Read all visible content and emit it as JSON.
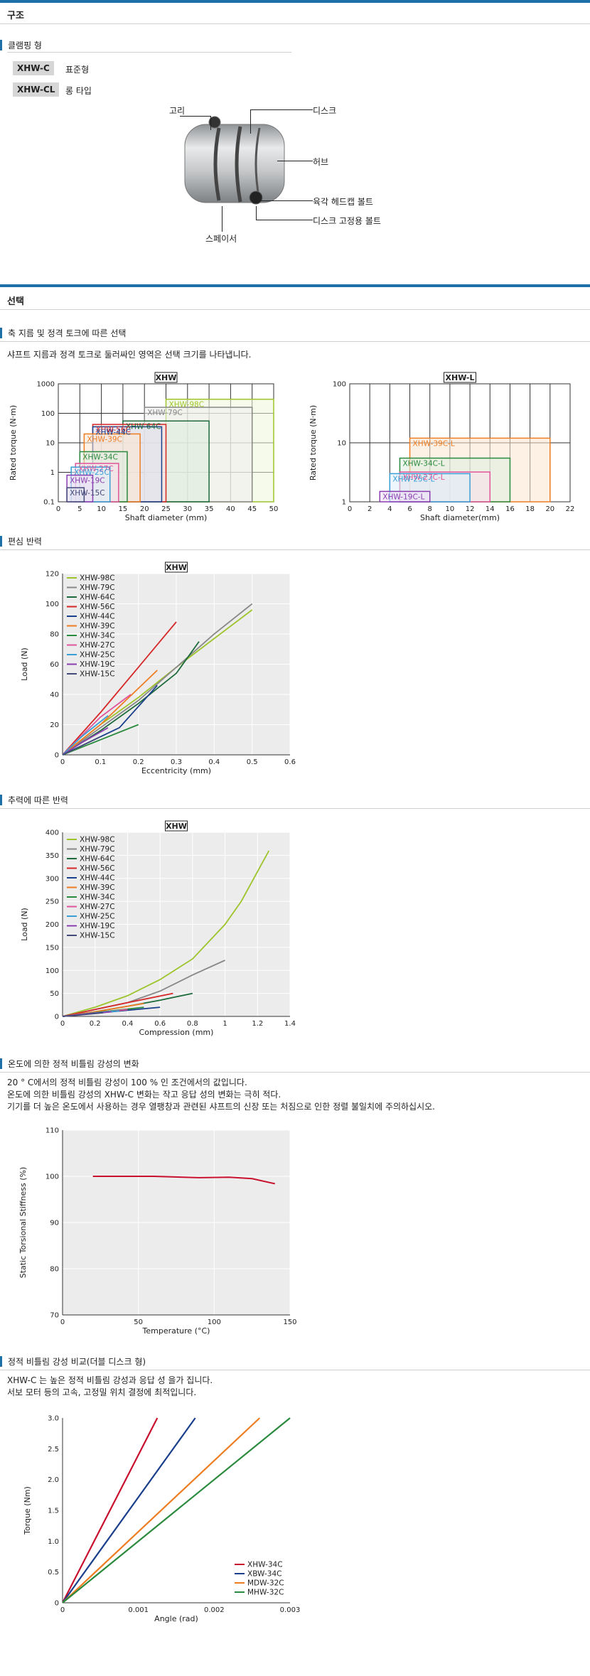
{
  "structure": {
    "title": "구조",
    "clamp_title": "클램핑 형",
    "types": [
      {
        "code": "XHW-C",
        "desc": "표준형"
      },
      {
        "code": "XHW-CL",
        "desc": "롱 타입"
      }
    ],
    "callouts": {
      "ring": "고리",
      "disc": "디스크",
      "hub": "허브",
      "hex_bolt": "육각 헤드캡 볼트",
      "disc_bolt": "디스크 고정용 볼트",
      "spacer": "스페이서"
    }
  },
  "selection": {
    "title": "선택",
    "sub1": "축 지름 및 정격 토크에 따른 선택",
    "desc1": "샤프트 지름과 정격 토크로 둘러싸인 영역은 선택 크기를 나타냅니다.",
    "sub2": "편심 반력",
    "sub3": "추력에 따른 반력",
    "sub4": "온도에 의한 정적 비틀림 강성의 변화",
    "temp_lines": [
      "20 ° C에서의 정적 비틀림 강성이 100 % 인 조건에서의 값입니다.",
      "온도에 의한 비틀림 강성의 XHW-C 변화는 작고 응답 성의 변화는 극히 적다.",
      "기기를 더 높은 온도에서 사용하는 경우 열팽창과 관련된 샤프트의 신장 또는 처짐으로 인한 정렬 불일치에 주의하십시오."
    ],
    "sub5": "정적 비틀림 강성 비교(더블 디스크 형)",
    "cmp_lines": [
      "XHW-C 는 높은 정적 비틀림 강성과 응답 성 을가 집니다.",
      "서보 모터 등의 고속, 고정밀 위치 결정에 최적입니다."
    ]
  },
  "chart_data": [
    {
      "type": "area",
      "title": "XHW",
      "xlabel": "Shaft diameter (mm)",
      "ylabel": "Rated torque (N·m)",
      "xlim": [
        0,
        50
      ],
      "ylim": [
        0.1,
        1000
      ],
      "y_scale": "log",
      "xticks": [
        0,
        5,
        10,
        15,
        20,
        25,
        30,
        35,
        40,
        45,
        50
      ],
      "yticks": [
        0.1,
        1,
        10,
        100,
        1000
      ],
      "ytick_labels": [
        "0.1",
        "1",
        "10",
        "100",
        "1000"
      ],
      "regions": [
        {
          "name": "XHW-98C",
          "x": [
            25,
            50
          ],
          "y": [
            0.1,
            300
          ],
          "color": "#9dc42b",
          "fill": "#eef5d8"
        },
        {
          "name": "XHW-79C",
          "x": [
            20,
            45
          ],
          "y": [
            0.1,
            160
          ],
          "color": "#888888",
          "fill": "#ececec"
        },
        {
          "name": "XHW-64C",
          "x": [
            15,
            35
          ],
          "y": [
            0.1,
            55
          ],
          "color": "#1d6b3c",
          "fill": "#dcebdf"
        },
        {
          "name": "XHW-56C",
          "x": [
            8,
            25
          ],
          "y": [
            0.1,
            42
          ],
          "color": "#d62828",
          "fill": "#f7dede"
        },
        {
          "name": "XHW-44C",
          "x": [
            8,
            24
          ],
          "y": [
            0.1,
            35
          ],
          "color": "#1a3f8c",
          "fill": "#dde4f3"
        },
        {
          "name": "XHW-39C",
          "x": [
            6,
            19
          ],
          "y": [
            0.1,
            20
          ],
          "color": "#ee7d22",
          "fill": "#fbe6d2"
        },
        {
          "name": "XHW-34C",
          "x": [
            5,
            16
          ],
          "y": [
            0.1,
            5
          ],
          "color": "#2a8a3d",
          "fill": "#dcefe0"
        },
        {
          "name": "XHW-27C",
          "x": [
            4,
            14
          ],
          "y": [
            0.1,
            2
          ],
          "color": "#e0559b",
          "fill": "#f9e0ec"
        },
        {
          "name": "XHW-25C",
          "x": [
            3,
            12
          ],
          "y": [
            0.1,
            1.5
          ],
          "color": "#3a9fd6",
          "fill": "#dceefa"
        },
        {
          "name": "XHW-19C",
          "x": [
            2,
            8
          ],
          "y": [
            0.1,
            0.8
          ],
          "color": "#8a3fb0",
          "fill": "#ecdff5"
        },
        {
          "name": "XHW-15C",
          "x": [
            2,
            6
          ],
          "y": [
            0.1,
            0.3
          ],
          "color": "#444a7a",
          "fill": "#e2e3ee"
        }
      ]
    },
    {
      "type": "area",
      "title": "XHW-L",
      "xlabel": "Shaft diameter(mm)",
      "ylabel": "Rated torque (N·m)",
      "xlim": [
        0,
        22
      ],
      "ylim": [
        1,
        100
      ],
      "y_scale": "log",
      "xticks": [
        0,
        2,
        4,
        6,
        8,
        10,
        12,
        14,
        16,
        18,
        20,
        22
      ],
      "yticks": [
        1,
        10,
        100
      ],
      "ytick_labels": [
        "1",
        "10",
        "100"
      ],
      "regions": [
        {
          "name": "XHW-39C-L",
          "x": [
            6,
            20
          ],
          "y": [
            1,
            12
          ],
          "color": "#ee7d22",
          "fill": "#fbe6d2"
        },
        {
          "name": "XHW-34C-L",
          "x": [
            5,
            16
          ],
          "y": [
            1,
            5.5
          ],
          "color": "#2a8a3d",
          "fill": "#dcefe0"
        },
        {
          "name": "XHW-27C-L",
          "x": [
            5,
            14
          ],
          "y": [
            1,
            3.2
          ],
          "color": "#e0559b",
          "fill": "#f9e0ec"
        },
        {
          "name": "XHW-25C-L",
          "x": [
            4,
            12
          ],
          "y": [
            1,
            3
          ],
          "color": "#3a9fd6",
          "fill": "#dceefa"
        },
        {
          "name": "XHW-19C-L",
          "x": [
            3,
            8
          ],
          "y": [
            1,
            1.5
          ],
          "color": "#8a3fb0",
          "fill": "#ecdff5"
        }
      ]
    },
    {
      "type": "line",
      "title": "XHW",
      "xlabel": "Eccentricity (mm)",
      "ylabel": "Load (N)",
      "xlim": [
        0,
        0.6
      ],
      "ylim": [
        0,
        120
      ],
      "xticks": [
        0,
        0.1,
        0.2,
        0.3,
        0.4,
        0.5,
        0.6
      ],
      "yticks": [
        0,
        20,
        40,
        60,
        80,
        100,
        120
      ],
      "legend": "top-left",
      "series": [
        {
          "name": "XHW-98C",
          "color": "#9dc42b",
          "points": [
            [
              0,
              0
            ],
            [
              0.1,
              20
            ],
            [
              0.2,
              38
            ],
            [
              0.3,
              58
            ],
            [
              0.4,
              77
            ],
            [
              0.5,
              96
            ]
          ]
        },
        {
          "name": "XHW-79C",
          "color": "#888888",
          "points": [
            [
              0,
              0
            ],
            [
              0.1,
              18
            ],
            [
              0.2,
              36
            ],
            [
              0.3,
              58
            ],
            [
              0.4,
              80
            ],
            [
              0.5,
              100
            ]
          ]
        },
        {
          "name": "XHW-64C",
          "color": "#1d6b3c",
          "points": [
            [
              0,
              0
            ],
            [
              0.1,
              16
            ],
            [
              0.2,
              34
            ],
            [
              0.3,
              54
            ],
            [
              0.36,
              75
            ]
          ]
        },
        {
          "name": "XHW-56C",
          "color": "#d62828",
          "points": [
            [
              0,
              0
            ],
            [
              0.1,
              28
            ],
            [
              0.2,
              58
            ],
            [
              0.3,
              88
            ]
          ]
        },
        {
          "name": "XHW-44C",
          "color": "#1a3f8c",
          "points": [
            [
              0,
              0
            ],
            [
              0.05,
              6
            ],
            [
              0.15,
              18
            ],
            [
              0.25,
              46
            ]
          ]
        },
        {
          "name": "XHW-39C",
          "color": "#ee7d22",
          "points": [
            [
              0,
              0
            ],
            [
              0.1,
              20
            ],
            [
              0.25,
              56
            ]
          ]
        },
        {
          "name": "XHW-34C",
          "color": "#2a8a3d",
          "points": [
            [
              0,
              0
            ],
            [
              0.1,
              10
            ],
            [
              0.2,
              20
            ]
          ]
        },
        {
          "name": "XHW-27C",
          "color": "#e0559b",
          "points": [
            [
              0,
              0
            ],
            [
              0.1,
              25
            ],
            [
              0.18,
              40
            ]
          ]
        },
        {
          "name": "XHW-25C",
          "color": "#3a9fd6",
          "points": [
            [
              0,
              0
            ],
            [
              0.05,
              12
            ],
            [
              0.12,
              26
            ]
          ]
        },
        {
          "name": "XHW-19C",
          "color": "#8a3fb0",
          "points": [
            [
              0,
              0
            ],
            [
              0.05,
              8
            ],
            [
              0.12,
              18
            ]
          ]
        },
        {
          "name": "XHW-15C",
          "color": "#444a7a",
          "points": [
            [
              0,
              0
            ],
            [
              0.05,
              6
            ],
            [
              0.1,
              12
            ]
          ]
        }
      ]
    },
    {
      "type": "line",
      "title": "XHW",
      "xlabel": "Compression (mm)",
      "ylabel": "Load (N)",
      "xlim": [
        0,
        1.4
      ],
      "ylim": [
        0,
        400
      ],
      "xticks": [
        0,
        0.2,
        0.4,
        0.6,
        0.8,
        1,
        1.2,
        1.4
      ],
      "yticks": [
        0,
        50,
        100,
        150,
        200,
        250,
        300,
        350,
        400
      ],
      "legend": "top-left",
      "series": [
        {
          "name": "XHW-98C",
          "color": "#9dc42b",
          "points": [
            [
              0,
              0
            ],
            [
              0.2,
              20
            ],
            [
              0.4,
              45
            ],
            [
              0.6,
              80
            ],
            [
              0.8,
              125
            ],
            [
              1,
              200
            ],
            [
              1.1,
              250
            ],
            [
              1.27,
              360
            ]
          ]
        },
        {
          "name": "XHW-79C",
          "color": "#888888",
          "points": [
            [
              0,
              0
            ],
            [
              0.2,
              15
            ],
            [
              0.4,
              30
            ],
            [
              0.6,
              55
            ],
            [
              0.8,
              90
            ],
            [
              1,
              122
            ]
          ]
        },
        {
          "name": "XHW-64C",
          "color": "#1d6b3c",
          "points": [
            [
              0,
              0
            ],
            [
              0.2,
              10
            ],
            [
              0.4,
              22
            ],
            [
              0.6,
              35
            ],
            [
              0.8,
              50
            ]
          ]
        },
        {
          "name": "XHW-56C",
          "color": "#d62828",
          "points": [
            [
              0,
              0
            ],
            [
              0.2,
              15
            ],
            [
              0.4,
              30
            ],
            [
              0.68,
              50
            ]
          ]
        },
        {
          "name": "XHW-44C",
          "color": "#1a3f8c",
          "points": [
            [
              0,
              0
            ],
            [
              0.3,
              10
            ],
            [
              0.6,
              20
            ]
          ]
        },
        {
          "name": "XHW-39C",
          "color": "#ee7d22",
          "points": [
            [
              0,
              0
            ],
            [
              0.2,
              10
            ],
            [
              0.5,
              28
            ]
          ]
        },
        {
          "name": "XHW-34C",
          "color": "#2a8a3d",
          "points": [
            [
              0,
              0
            ],
            [
              0.2,
              8
            ],
            [
              0.5,
              20
            ]
          ]
        },
        {
          "name": "XHW-27C",
          "color": "#e0559b",
          "points": [
            [
              0,
              0
            ],
            [
              0.2,
              7
            ],
            [
              0.4,
              15
            ]
          ]
        },
        {
          "name": "XHW-25C",
          "color": "#3a9fd6",
          "points": [
            [
              0,
              0
            ],
            [
              0.15,
              6
            ],
            [
              0.35,
              12
            ]
          ]
        },
        {
          "name": "XHW-19C",
          "color": "#8a3fb0",
          "points": [
            [
              0,
              0
            ],
            [
              0.1,
              4
            ],
            [
              0.3,
              10
            ]
          ]
        },
        {
          "name": "XHW-15C",
          "color": "#444a7a",
          "points": [
            [
              0,
              0
            ],
            [
              0.1,
              3
            ],
            [
              0.25,
              8
            ]
          ]
        }
      ]
    },
    {
      "type": "line",
      "xlabel": "Temperature (°C)",
      "ylabel": "Static Torsional Stiffness (%)",
      "xlim": [
        0,
        150
      ],
      "ylim": [
        70,
        110
      ],
      "xticks": [
        0,
        50,
        100,
        150
      ],
      "yticks": [
        70,
        80,
        90,
        100,
        110
      ],
      "series": [
        {
          "color": "#c8102e",
          "points": [
            [
              20,
              100
            ],
            [
              60,
              100
            ],
            [
              90,
              99.7
            ],
            [
              110,
              99.8
            ],
            [
              125,
              99.5
            ],
            [
              140,
              98.4
            ]
          ]
        }
      ]
    },
    {
      "type": "line",
      "xlabel": "Angle (rad)",
      "ylabel": "Torque (Nm)",
      "xlim": [
        0,
        0.003
      ],
      "ylim": [
        0,
        3.0
      ],
      "xticks": [
        0,
        0.001,
        0.002,
        0.003
      ],
      "xtick_labels": [
        "0",
        "0.001",
        "0.002",
        "0.003"
      ],
      "yticks": [
        0,
        0.5,
        1,
        1.5,
        2,
        2.5,
        3
      ],
      "ytick_labels": [
        "0",
        "0.5",
        "1.0",
        "1.5",
        "2.0",
        "2.5",
        "3.0"
      ],
      "legend": "bottom-right",
      "series": [
        {
          "name": "XHW-34C",
          "color": "#c8102e",
          "points": [
            [
              0,
              0
            ],
            [
              0.00125,
              3.0
            ]
          ]
        },
        {
          "name": "XBW-34C",
          "color": "#1a3f8c",
          "points": [
            [
              0,
              0
            ],
            [
              0.00175,
              3.0
            ]
          ]
        },
        {
          "name": "MDW-32C",
          "color": "#ee7d22",
          "points": [
            [
              0,
              0
            ],
            [
              0.0026,
              3.0
            ]
          ]
        },
        {
          "name": "MHW-32C",
          "color": "#2a8a3d",
          "points": [
            [
              0,
              0
            ],
            [
              0.003,
              3.0
            ]
          ]
        }
      ]
    }
  ]
}
